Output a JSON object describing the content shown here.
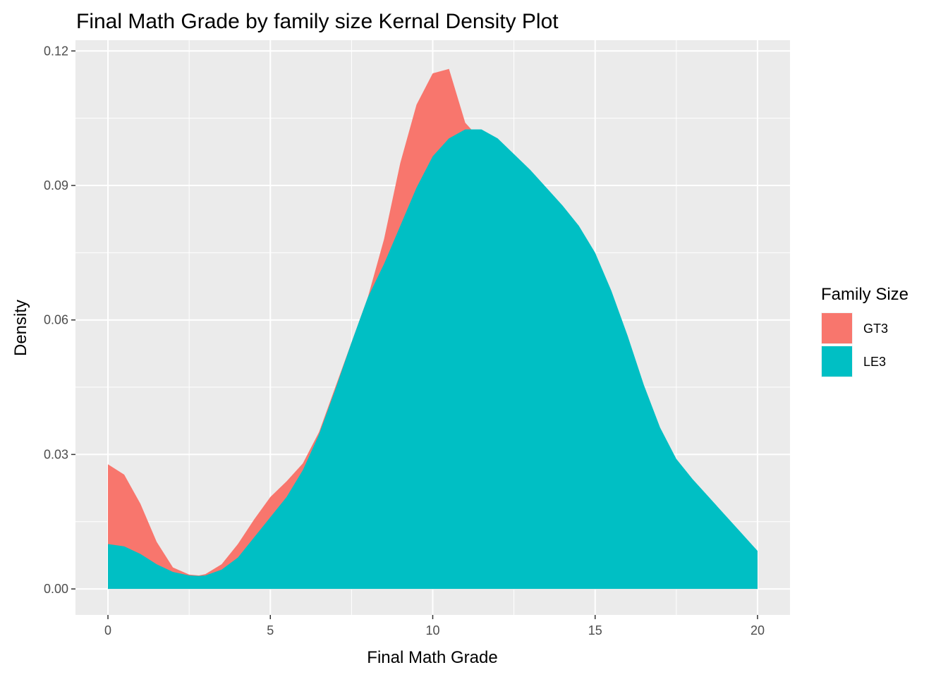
{
  "chart_data": {
    "type": "area",
    "title": "Final Math Grade by family size Kernal Density Plot",
    "xlabel": "Final Math Grade",
    "ylabel": "Density",
    "xlim": [
      -1,
      21
    ],
    "ylim": [
      -0.0058,
      0.1224
    ],
    "x_ticks": [
      0,
      5,
      10,
      15,
      20
    ],
    "x_tick_labels": [
      "0",
      "5",
      "10",
      "15",
      "20"
    ],
    "y_ticks": [
      0.0,
      0.03,
      0.06,
      0.09,
      0.12
    ],
    "y_tick_labels": [
      "0.00",
      "0.03",
      "0.06",
      "0.09",
      "0.12"
    ],
    "grid": true,
    "legend": {
      "title": "Family Size",
      "position": "right"
    },
    "series": [
      {
        "name": "GT3",
        "color": "#F8766D",
        "x": [
          0,
          0.5,
          1,
          1.5,
          2,
          2.5,
          2.8,
          3,
          3.5,
          4,
          4.5,
          5,
          5.5,
          6,
          6.5,
          7,
          7.5,
          8,
          8.5,
          9,
          9.5,
          10,
          10.5,
          11,
          11.5,
          12,
          12.5,
          13,
          13.5,
          14,
          14.5,
          15,
          15.5,
          16,
          16.5,
          17,
          17.5,
          18,
          18.5,
          19,
          19.5,
          20
        ],
        "y": [
          0.0278,
          0.0255,
          0.019,
          0.0105,
          0.0048,
          0.0032,
          0.003,
          0.0033,
          0.0055,
          0.01,
          0.0155,
          0.0205,
          0.024,
          0.028,
          0.035,
          0.045,
          0.055,
          0.065,
          0.078,
          0.095,
          0.108,
          0.115,
          0.116,
          0.104,
          0.1,
          0.097,
          0.092,
          0.0875,
          0.084,
          0.0795,
          0.0745,
          0.0685,
          0.059,
          0.0475,
          0.0365,
          0.0275,
          0.021,
          0.0175,
          0.0145,
          0.0115,
          0.0088,
          0.0065
        ]
      },
      {
        "name": "LE3",
        "color": "#00BFC4",
        "x": [
          0,
          0.5,
          1,
          1.5,
          2,
          2.5,
          2.8,
          3,
          3.5,
          4,
          4.5,
          5,
          5.5,
          6,
          6.5,
          7,
          7.5,
          8,
          8.5,
          9,
          9.5,
          10,
          10.5,
          11,
          11.5,
          12,
          12.5,
          13,
          13.5,
          14,
          14.5,
          15,
          15.5,
          16,
          16.5,
          17,
          17.5,
          18,
          18.5,
          19,
          19.5,
          20
        ],
        "y": [
          0.01,
          0.0095,
          0.0078,
          0.0055,
          0.0038,
          0.003,
          0.0029,
          0.003,
          0.0043,
          0.007,
          0.0115,
          0.016,
          0.0205,
          0.0265,
          0.0345,
          0.0445,
          0.055,
          0.065,
          0.0725,
          0.081,
          0.0895,
          0.0965,
          0.1005,
          0.1025,
          0.1025,
          0.1005,
          0.097,
          0.0935,
          0.0895,
          0.0855,
          0.081,
          0.075,
          0.0665,
          0.0565,
          0.0455,
          0.036,
          0.029,
          0.0245,
          0.0205,
          0.0165,
          0.0125,
          0.0085
        ]
      }
    ]
  }
}
